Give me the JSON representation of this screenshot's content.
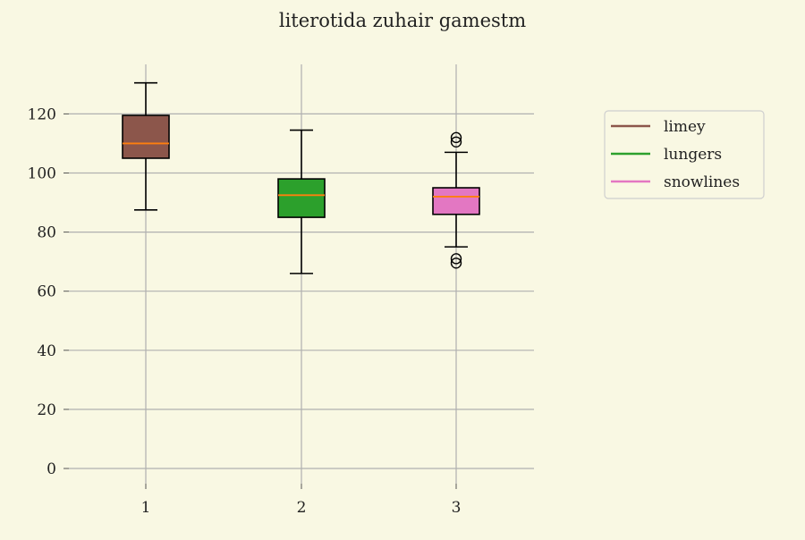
{
  "chart_data": {
    "type": "box",
    "title": "literotida zuhair gamestm",
    "xlabel": "",
    "ylabel": "",
    "categories": [
      "1",
      "2",
      "3"
    ],
    "ylim": [
      -5,
      137
    ],
    "y_ticks": [
      0,
      20,
      40,
      60,
      80,
      100,
      120
    ],
    "grid": true,
    "legend_position": "right",
    "series": [
      {
        "name": "limey",
        "color": "#8c564b",
        "whisker_low": 87.5,
        "q1": 105,
        "median": 110,
        "q3": 119.5,
        "whisker_high": 130.5,
        "outliers": []
      },
      {
        "name": "lungers",
        "color": "#2ca02c",
        "whisker_low": 66,
        "q1": 85,
        "median": 92.5,
        "q3": 98,
        "whisker_high": 114.5,
        "outliers": []
      },
      {
        "name": "snowlines",
        "color": "#e377c2",
        "whisker_low": 75,
        "q1": 86,
        "median": 92,
        "q3": 95,
        "whisker_high": 107,
        "outliers": [
          69.5,
          71,
          110.5,
          112
        ]
      }
    ],
    "median_color": "#ff7f0e"
  }
}
